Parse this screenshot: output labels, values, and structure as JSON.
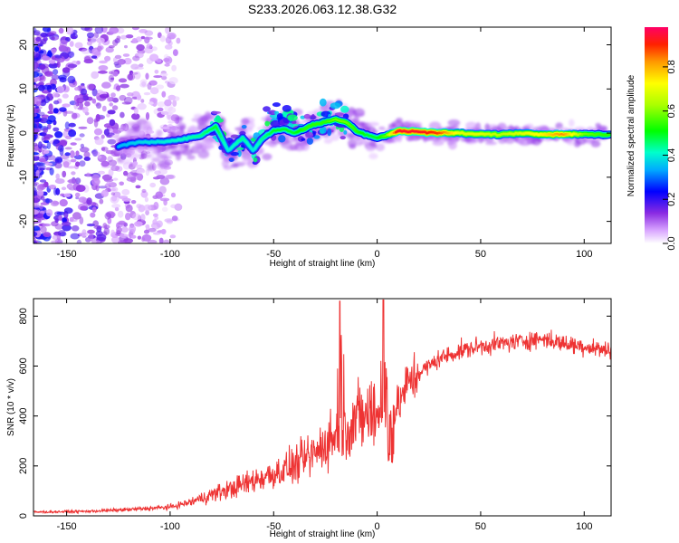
{
  "chart_data": [
    {
      "type": "heatmap",
      "title": "S233.2026.063.12.38.G32",
      "xlabel": "Height of straight line (km)",
      "ylabel": "Frequency (Hz)",
      "xlim": [
        -166,
        113
      ],
      "ylim": [
        -25,
        24
      ],
      "xticks": [
        -150,
        -100,
        -50,
        0,
        50,
        100
      ],
      "yticks": [
        -20,
        -10,
        0,
        10,
        20
      ],
      "colorbar": {
        "label": "Normalized spectral amplitude",
        "range": [
          0.0,
          0.98
        ],
        "ticks": [
          0.0,
          0.2,
          0.4,
          0.6,
          0.8
        ],
        "tick_labels": [
          "0.0",
          "0.2",
          "0.4",
          "0.6",
          "0.8"
        ]
      },
      "ridge": {
        "x": [
          -125,
          -115,
          -105,
          -95,
          -85,
          -78,
          -72,
          -65,
          -60,
          -55,
          -50,
          -45,
          -40,
          -35,
          -30,
          -25,
          -20,
          -15,
          -10,
          -5,
          0,
          5,
          10,
          20,
          30,
          40,
          50,
          60,
          70,
          80,
          90,
          100,
          110
        ],
        "freq": [
          -3,
          -2,
          -2,
          -1.5,
          -0.5,
          1.5,
          -4,
          -1,
          -4,
          -1,
          0.5,
          1,
          0,
          1,
          2,
          2.5,
          3,
          2.5,
          0.5,
          -0.5,
          -1,
          -0.5,
          0.5,
          0.3,
          0,
          0,
          -0.3,
          -0.3,
          0,
          -0.3,
          -0.3,
          -0.2,
          -0.4
        ],
        "amplitude": [
          0.35,
          0.38,
          0.4,
          0.42,
          0.45,
          0.5,
          0.4,
          0.45,
          0.4,
          0.45,
          0.5,
          0.5,
          0.5,
          0.55,
          0.55,
          0.55,
          0.6,
          0.6,
          0.55,
          0.5,
          0.5,
          0.6,
          0.95,
          0.95,
          0.9,
          0.7,
          0.7,
          0.65,
          0.7,
          0.75,
          0.85,
          0.6,
          0.55
        ]
      }
    },
    {
      "type": "line",
      "xlabel": "Height of straight line (km)",
      "ylabel": "SNR (10 * v/v)",
      "xlim": [
        -166,
        113
      ],
      "ylim": [
        0,
        870
      ],
      "xticks": [
        -150,
        -100,
        -50,
        0,
        50,
        100
      ],
      "yticks": [
        0,
        200,
        400,
        600,
        800
      ],
      "color": "#ee3333",
      "trend": {
        "x": [
          -166,
          -140,
          -120,
          -100,
          -90,
          -80,
          -70,
          -60,
          -50,
          -40,
          -30,
          -25,
          -20,
          -15,
          -10,
          -5,
          0,
          5,
          10,
          15,
          20,
          25,
          30,
          40,
          50,
          60,
          70,
          80,
          90,
          100,
          113
        ],
        "y": [
          15,
          18,
          25,
          35,
          55,
          85,
          110,
          140,
          170,
          200,
          250,
          290,
          320,
          360,
          390,
          400,
          410,
          380,
          440,
          530,
          570,
          600,
          630,
          660,
          680,
          690,
          700,
          710,
          690,
          680,
          660
        ]
      },
      "spikes": [
        {
          "x": -18,
          "y": 860
        },
        {
          "x": 3,
          "y": 865
        }
      ]
    }
  ]
}
